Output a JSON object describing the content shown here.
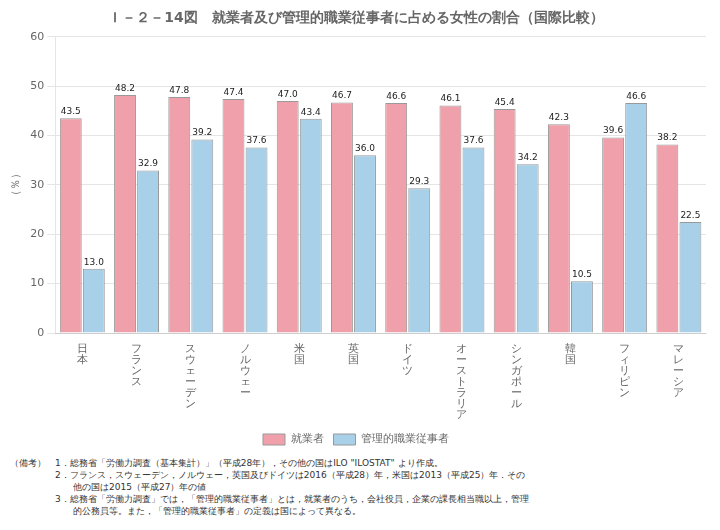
{
  "chart_data": {
    "type": "bar",
    "title": "Ｉ－２－14図　就業者及び管理的職業従事者に占める女性の割合（国際比較）",
    "ylabel": "（％）",
    "categories": [
      "日\n本",
      "フ\nラ\nン\nス",
      "ス\nウ\nェ\nー\nデ\nン",
      "ノ\nル\nウ\nェ\nー",
      "米\n国",
      "英\n国",
      "ド\nイ\nツ",
      "オ\nー\nス\nト\nラ\nリ\nア",
      "シ\nン\nガ\nポ\nー\nル",
      "韓\n国",
      "フ\nィ\nリ\nピ\nン",
      "マ\nレ\nー\nシ\nア"
    ],
    "series": [
      {
        "name": "就業者",
        "color": "#f0a0aa",
        "values": [
          43.5,
          48.2,
          47.8,
          47.4,
          47.0,
          46.7,
          46.6,
          46.1,
          45.4,
          42.3,
          39.6,
          38.2
        ],
        "value_labels": [
          "43.5",
          "48.2",
          "47.8",
          "47.4",
          "47.0",
          "46.7",
          "46.6",
          "46.1",
          "45.4",
          "42.3",
          "39.6",
          "38.2"
        ]
      },
      {
        "name": "管理的職業従事者",
        "color": "#a8d0e8",
        "values": [
          13.0,
          32.9,
          39.2,
          37.6,
          43.4,
          36.0,
          29.3,
          37.6,
          34.2,
          10.5,
          46.6,
          22.5
        ],
        "value_labels": [
          "13.0",
          "32.9",
          "39.2",
          "37.6",
          "43.4",
          "36.0",
          "29.3",
          "37.6",
          "34.2",
          "10.5",
          "46.6",
          "22.5"
        ]
      }
    ],
    "ylim": [
      0,
      60
    ],
    "yticks": [
      0,
      10,
      20,
      30,
      40,
      50,
      60
    ],
    "grid": true,
    "legend": "bottom",
    "data_labels": true,
    "annotations": [
      "（備考）　1．総務省「労働力調査（基本集計）」（平成28年），その他の国はILO \"ILOSTAT\" より作成。",
      "　　　　　2．フランス，スウェーデン，ノルウェー，英国及びドイツは2016（平成28）年，米国は2013（平成25）年．その",
      "　　　　　　　他の国は2015（平成27）年の値",
      "　　　　　3．総務省「労働力調査」では，「管理的職業従事者」とは，就業者のうち，会社役員，企業の課長相当職以上，管理",
      "　　　　　　　的公務員等。また，「管理的職業従事者」の定義は国によって異なる。"
    ]
  }
}
